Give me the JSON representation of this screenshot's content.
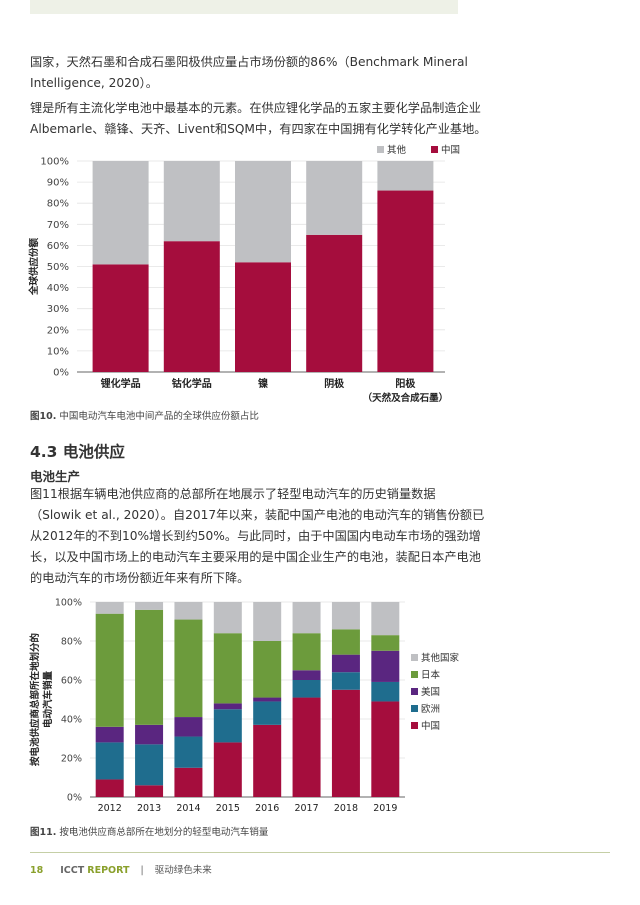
{
  "text": {
    "para1_line1": "国家，天然石墨和合成石墨阳极供应量占市场份额的86%（Benchmark Mineral",
    "para1_line2": "Intelligence, 2020）。",
    "para2_line1": "锂是所有主流化学电池中最基本的元素。在供应锂化学品的五家主要化学品制造企业",
    "para2_line2": "Albemarle、赣锋、天齐、Livent和SQM中，有四家在中国拥有化学转化产业基地。",
    "fig10_caption_label": "图10.",
    "fig10_caption_text": "中国电动汽车电池中间产品的全球供应份额占比",
    "section_heading": "4.3  电池供应",
    "subheading": "电池生产",
    "para3_line1": "图11根据车辆电池供应商的总部所在地展示了轻型电动汽车的历史销量数据",
    "para3_line2": "（Slowik et al., 2020）。自2017年以来，装配中国产电池的电动汽车的销售份额已",
    "para3_line3": "从2012年的不到10%增长到约50%。与此同时，由于中国国内电动车市场的强劲增",
    "para3_line4": "长，以及中国市场上的电动汽车主要采用的是中国企业生产的电池，装配日本产电池",
    "para3_line5": "的电动汽车的市场份额近年来有所下降。",
    "fig11_caption_label": "图11.",
    "fig11_caption_text": "按电池供应商总部所在地划分的轻型电动汽车销量",
    "footer_page": "18",
    "footer_icct": "ICCT",
    "footer_report": "REPORT",
    "footer_sep": "|",
    "footer_title": "驱动绿色未来"
  },
  "chart_data": [
    {
      "type": "bar",
      "stacked": true,
      "categories": [
        "锂化学品",
        "钴化学品",
        "镍",
        "阴极",
        "阳极"
      ],
      "category_sublabels": [
        "",
        "",
        "",
        "",
        "（天然及合成石墨）"
      ],
      "series": [
        {
          "name": "中国",
          "values": [
            51,
            62,
            52,
            65,
            86
          ],
          "color": "#a50d3d"
        },
        {
          "name": "其他",
          "values": [
            49,
            38,
            48,
            35,
            14
          ],
          "color": "#bfc0c3"
        }
      ],
      "ylabel": "全球供应份额",
      "ylim": [
        0,
        100
      ],
      "yticks": [
        "0%",
        "10%",
        "20%",
        "30%",
        "40%",
        "50%",
        "60%",
        "70%",
        "80%",
        "90%",
        "100%"
      ],
      "legend": [
        "其他",
        "中国"
      ],
      "legend_position": "top-right"
    },
    {
      "type": "bar",
      "stacked": true,
      "categories": [
        "2012",
        "2013",
        "2014",
        "2015",
        "2016",
        "2017",
        "2018",
        "2019"
      ],
      "series": [
        {
          "name": "中国",
          "values": [
            9,
            6,
            15,
            28,
            37,
            51,
            55,
            49
          ],
          "color": "#a50d3d"
        },
        {
          "name": "欧洲",
          "values": [
            19,
            21,
            16,
            17,
            12,
            9,
            9,
            10
          ],
          "color": "#1f6d8e"
        },
        {
          "name": "美国",
          "values": [
            8,
            10,
            10,
            3,
            2,
            5,
            9,
            16
          ],
          "color": "#5a2680"
        },
        {
          "name": "日本",
          "values": [
            58,
            59,
            50,
            36,
            29,
            19,
            13,
            8
          ],
          "color": "#6c9b3c"
        },
        {
          "name": "其他国家",
          "values": [
            6,
            4,
            9,
            16,
            20,
            16,
            14,
            17
          ],
          "color": "#bfc0c3"
        }
      ],
      "ylabel_line1": "按电池供应商总部所在地划分的",
      "ylabel_line2": "电动汽车销量",
      "ylim": [
        0,
        100
      ],
      "yticks": [
        "0%",
        "20%",
        "40%",
        "60%",
        "80%",
        "100%"
      ],
      "legend": [
        "其他国家",
        "日本",
        "美国",
        "欧洲",
        "中国"
      ],
      "legend_position": "right"
    }
  ]
}
